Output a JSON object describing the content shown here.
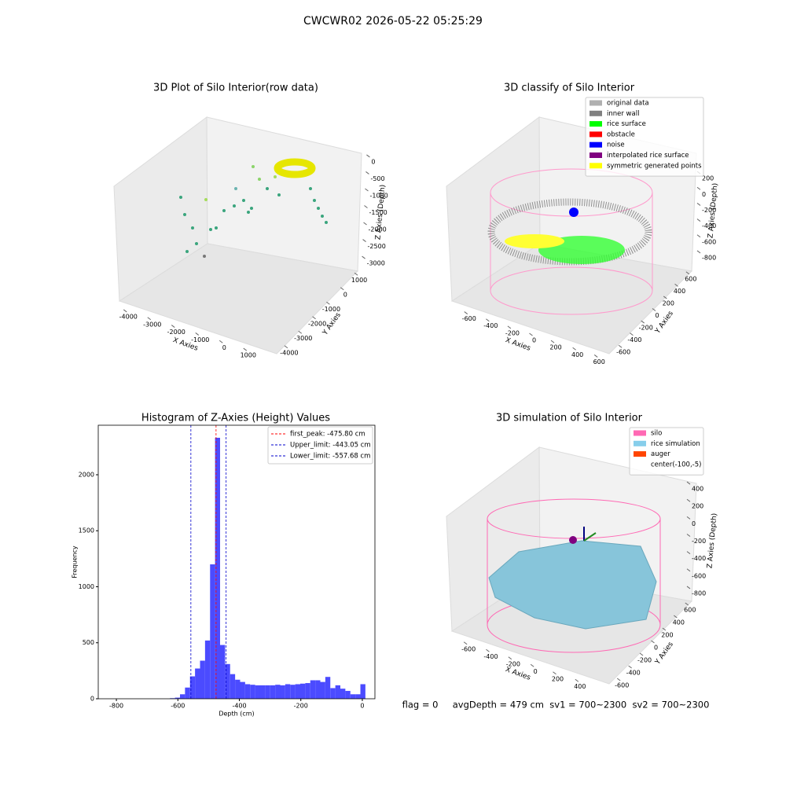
{
  "title": "CWCWR02 2026-05-22 05:25:29",
  "chart_data": [
    {
      "type": "scatter3d",
      "title": "3D Plot of Silo Interior(row data)",
      "xlabel": "X Axies",
      "ylabel": "Y Axies",
      "zlabel": "Z Axies (Depth)",
      "xlim": [
        -4500,
        1500
      ],
      "ylim": [
        -4500,
        1500
      ],
      "zlim": [
        -3300,
        300
      ],
      "xticks": [
        -4000,
        -3000,
        -2000,
        -1000,
        0,
        1000
      ],
      "yticks": [
        -4000,
        -3000,
        -2000,
        -1000,
        0,
        1000
      ],
      "zticks": [
        0,
        -500,
        -1000,
        -1500,
        -2000,
        -2500,
        -3000
      ]
    },
    {
      "type": "scatter3d",
      "title": "3D classify of Silo Interior",
      "xlabel": "X Axies",
      "ylabel": "Y Axies",
      "zlabel": "Z Axies (Depth)",
      "xlim": [
        -700,
        700
      ],
      "ylim": [
        -700,
        700
      ],
      "zlim": [
        -900,
        300
      ],
      "xticks": [
        -600,
        -400,
        -200,
        0,
        200,
        400,
        600
      ],
      "yticks": [
        -600,
        -400,
        -200,
        0,
        200,
        400,
        600
      ],
      "zticks": [
        200,
        0,
        -200,
        -400,
        -600,
        -800
      ],
      "legend": [
        {
          "name": "original data",
          "color": "#b0b0b0"
        },
        {
          "name": "inner wall",
          "color": "#808080"
        },
        {
          "name": "rice surface",
          "color": "#00ff00"
        },
        {
          "name": "obstacle",
          "color": "#ff0000"
        },
        {
          "name": "noise",
          "color": "#0000ff"
        },
        {
          "name": "interpolated rice surface",
          "color": "#800080"
        },
        {
          "name": "symmetric generated points",
          "color": "#ffff00"
        }
      ]
    },
    {
      "type": "histogram",
      "title": "Histogram of Z-Axies (Height) Values",
      "xlabel": "Depth (cm)",
      "ylabel": "Frequency",
      "color": "#4b4bff",
      "bins": [
        -805,
        -788.7,
        -772.4,
        -756.1,
        -739.8,
        -723.5,
        -707.2,
        -690.9,
        -674.6,
        -658.3,
        -642,
        -625.7,
        -609.4,
        -593.1,
        -576.8,
        -560.5,
        -544.2,
        -527.9,
        -511.6,
        -495.3,
        -479,
        -462.7,
        -446.4,
        -430.1,
        -413.8,
        -397.5,
        -381.2,
        -364.9,
        -348.6,
        -332.3,
        -316,
        -299.7,
        -283.4,
        -267.1,
        -250.8,
        -234.5,
        -218.2,
        -201.9,
        -185.6,
        -169.3,
        -153,
        -136.7,
        -120.4,
        -104.1,
        -87.8,
        -71.5,
        -55.2,
        -38.9,
        -22.6,
        -6.3,
        10
      ],
      "counts": [
        0,
        0,
        0,
        0,
        0,
        0,
        0,
        0,
        0,
        0,
        0,
        5,
        10,
        40,
        100,
        200,
        270,
        340,
        520,
        1200,
        2330,
        480,
        310,
        220,
        170,
        150,
        130,
        125,
        120,
        120,
        120,
        120,
        125,
        120,
        130,
        125,
        130,
        135,
        140,
        165,
        165,
        150,
        195,
        95,
        120,
        90,
        70,
        40,
        40,
        130
      ],
      "xlim": [
        -859,
        41
      ],
      "ylim": [
        0,
        2442
      ],
      "xticks": [
        -800,
        -600,
        -400,
        -200,
        0
      ],
      "yticks": [
        0,
        500,
        1000,
        1500,
        2000
      ],
      "vlines": [
        {
          "value": -475.8,
          "label": "first_peak: -475.80 cm",
          "color": "#ff0000"
        },
        {
          "value": -443.05,
          "label": "Upper_limit: -443.05 cm",
          "color": "#0000cc"
        },
        {
          "value": -557.68,
          "label": "Lower_limit: -557.68 cm",
          "color": "#0000cc"
        }
      ],
      "legend_loc": "upper right"
    },
    {
      "type": "scatter3d",
      "title": "3D simulation of Silo Interior",
      "xlabel": "X Axies",
      "ylabel": "Y Axies",
      "zlabel": "Z Axies (Depth)",
      "xlim": [
        -700,
        500
      ],
      "ylim": [
        -700,
        700
      ],
      "zlim": [
        -900,
        500
      ],
      "xticks": [
        -600,
        -400,
        -200,
        0,
        200,
        400
      ],
      "yticks": [
        -600,
        -400,
        -200,
        0,
        200,
        400,
        600
      ],
      "zticks": [
        400,
        200,
        0,
        -200,
        -400,
        -600,
        -800
      ],
      "legend": [
        {
          "name": "silo",
          "color": "#ff69b4"
        },
        {
          "name": "rice simulation",
          "color": "#87ceeb"
        },
        {
          "name": "auger",
          "color": "#ff4500"
        },
        {
          "name": "center(-100,-5)",
          "color": "#ffffff"
        }
      ]
    }
  ],
  "footer": "flag = 0     avgDepth = 479 cm  sv1 = 700~2300  sv2 = 700~2300"
}
